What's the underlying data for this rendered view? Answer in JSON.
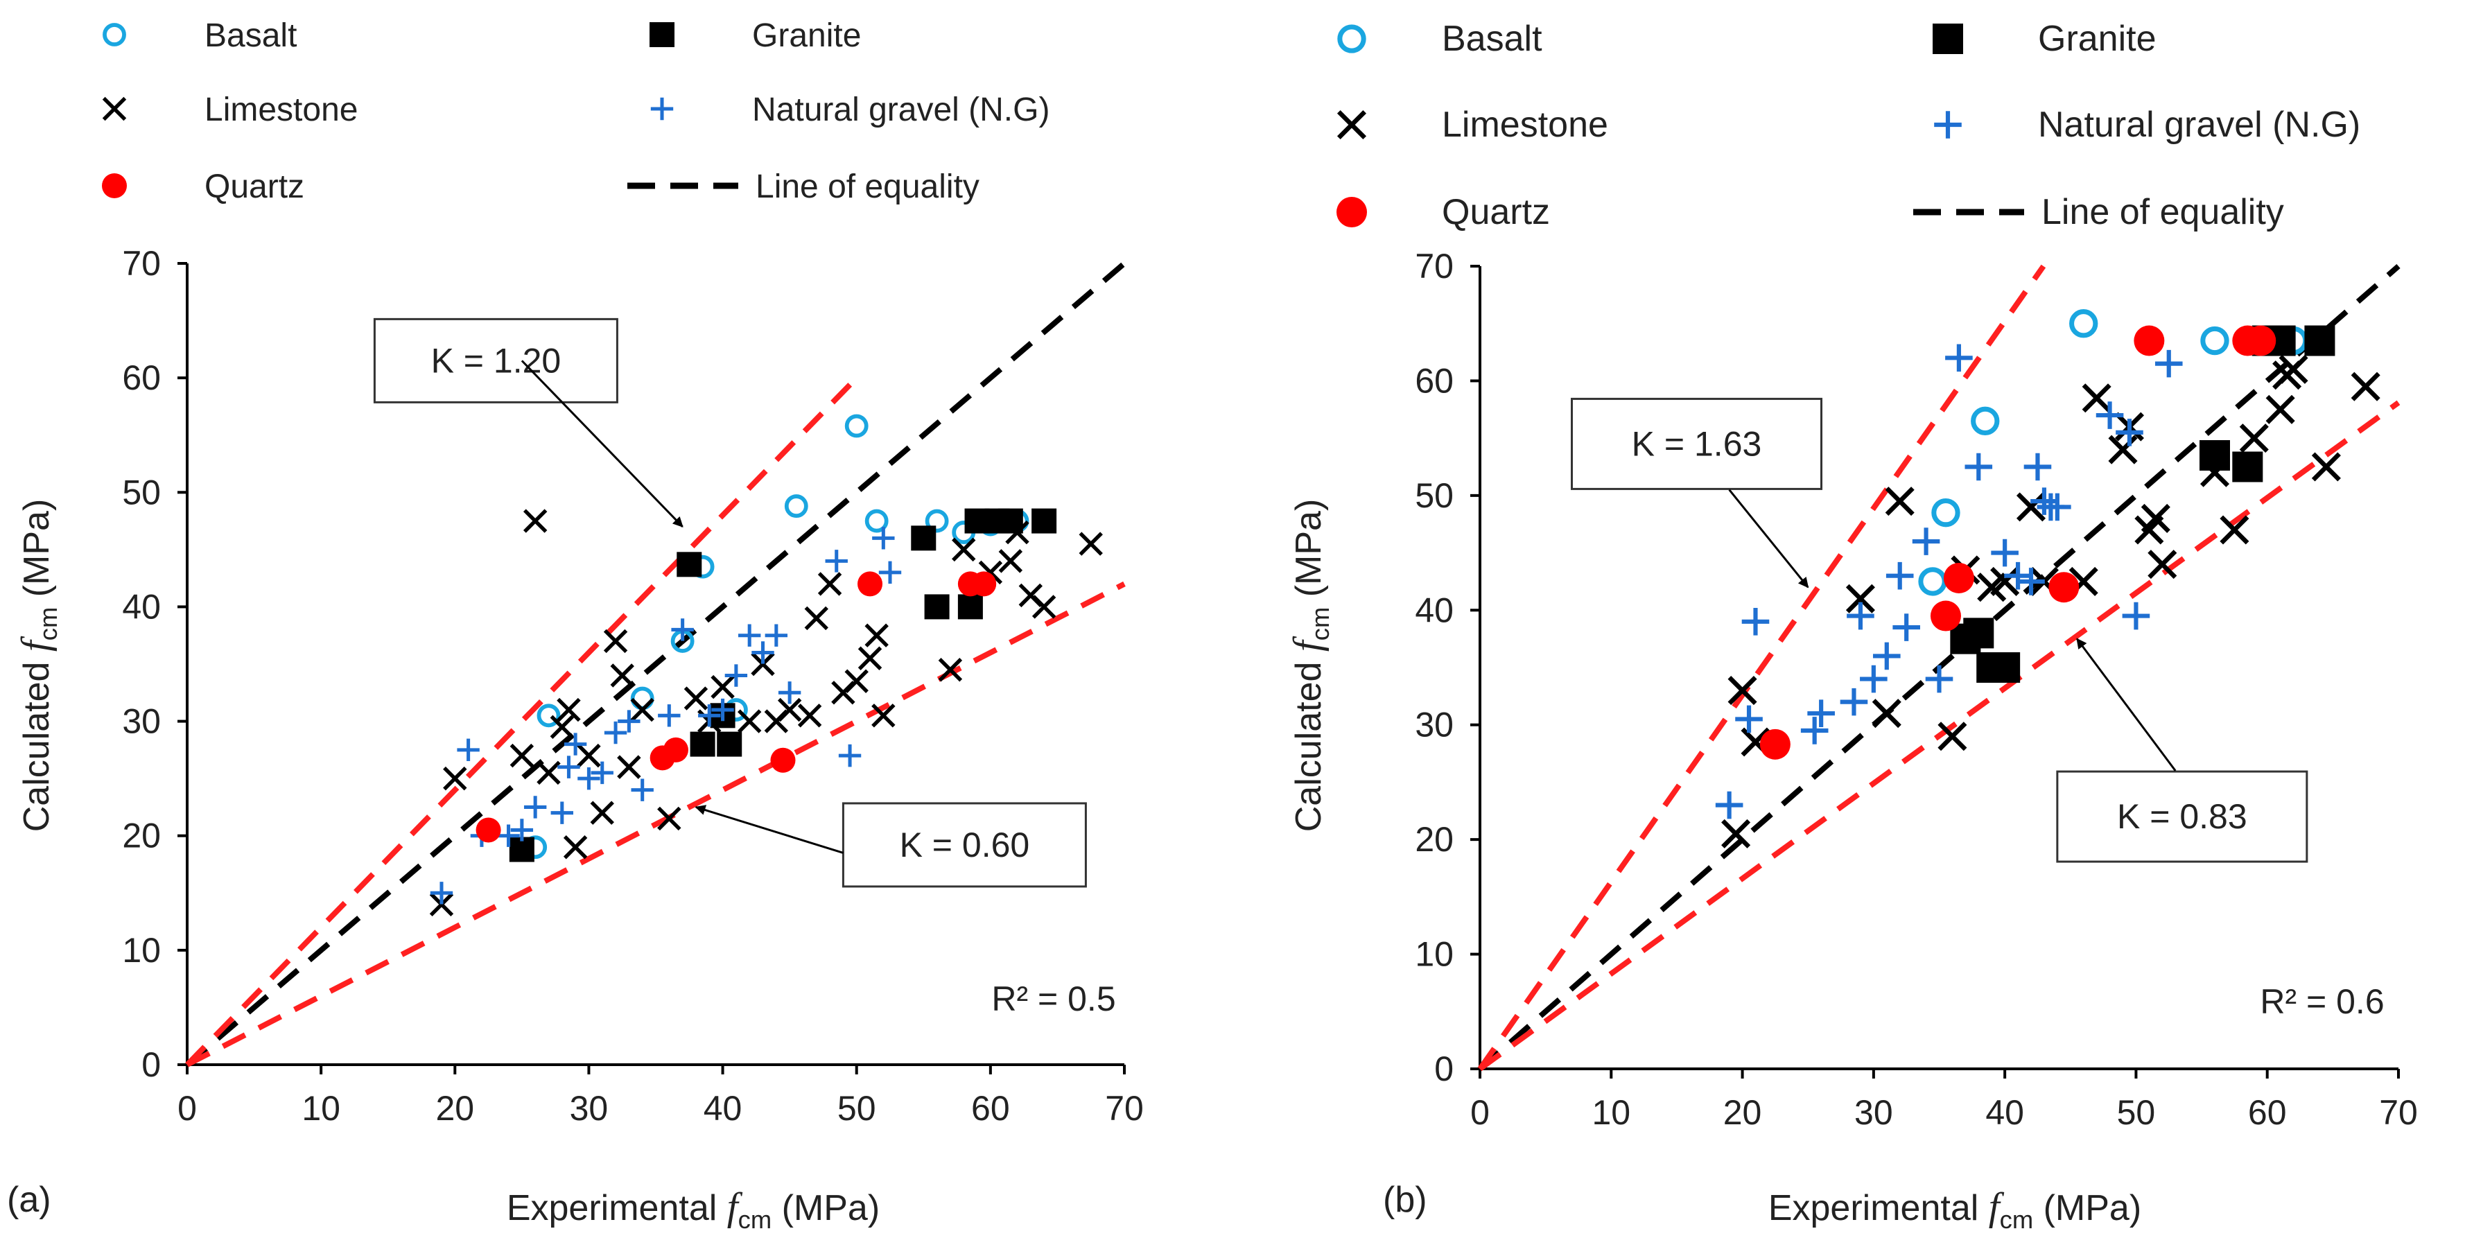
{
  "colors": {
    "basalt": "#1aa6e0",
    "granite": "#000000",
    "limestone": "#000000",
    "natural_gravel": "#1f6fd1",
    "quartz": "#ff0000",
    "equality_line": "#000000",
    "bound_line": "#ff2020",
    "axis": "#000000",
    "text": "#222222"
  },
  "legend": [
    {
      "key": "basalt",
      "label": "Basalt",
      "marker": "open-circle"
    },
    {
      "key": "granite",
      "label": "Granite",
      "marker": "filled-square"
    },
    {
      "key": "limestone",
      "label": "Limestone",
      "marker": "cross-x"
    },
    {
      "key": "natural_gravel",
      "label": "Natural gravel (N.G)",
      "marker": "plus"
    },
    {
      "key": "quartz",
      "label": "Quartz",
      "marker": "filled-circle"
    },
    {
      "key": "equality_line",
      "label": "Line of equality",
      "marker": "dashed-line"
    }
  ],
  "chart_data": [
    {
      "type": "scatter",
      "panel_label": "(a)",
      "xlabel": "Experimental fcm (MPa)",
      "xlabel_main": "Experimental ",
      "xlabel_var": "f",
      "xlabel_sub": "cm",
      "xlabel_unit": "(MPa)",
      "ylabel": "Calculated fcm (MPa)",
      "ylabel_main": "Calculated ",
      "ylabel_var": "f",
      "ylabel_sub": "cm",
      "ylabel_unit": "(MPa)",
      "xlim": [
        0,
        70
      ],
      "ylim": [
        0,
        70
      ],
      "xticks": [
        "0",
        "10",
        "20",
        "30",
        "40",
        "50",
        "60",
        "70"
      ],
      "yticks": [
        "0",
        "10",
        "20",
        "30",
        "40",
        "50",
        "60",
        "70"
      ],
      "grid": false,
      "legend_position": "top",
      "r2_label": "R² = 0.5",
      "reference_lines": [
        {
          "label": "Line of equality",
          "slope": 1.0,
          "x_end": 70
        },
        {
          "label": "K = 1.20",
          "slope": 1.2,
          "x_end": 50
        },
        {
          "label": "K = 0.60",
          "slope": 0.6,
          "x_end": 70
        }
      ],
      "annotations": [
        {
          "text": "K = 1.20",
          "box_x": 14,
          "box_y": 61.5,
          "arrow_from": [
            25,
            61.5
          ],
          "arrow_to": [
            37,
            47
          ]
        },
        {
          "text": "K = 0.60",
          "box_x": 49,
          "box_y": 19.2,
          "arrow_from": [
            49,
            18.5
          ],
          "arrow_to": [
            38,
            22.5
          ]
        }
      ],
      "series": [
        {
          "name": "Basalt",
          "key": "basalt",
          "points": [
            [
              27,
              30.5
            ],
            [
              26,
              19
            ],
            [
              34,
              32
            ],
            [
              37,
              37
            ],
            [
              38.5,
              43.5
            ],
            [
              41,
              31
            ],
            [
              45.5,
              48.8
            ],
            [
              50,
              55.8
            ],
            [
              51.5,
              47.5
            ],
            [
              56,
              47.5
            ],
            [
              58,
              46.5
            ],
            [
              60,
              47.2
            ],
            [
              62,
              47.5
            ]
          ]
        },
        {
          "name": "Granite",
          "key": "granite",
          "points": [
            [
              25,
              18.8
            ],
            [
              37.5,
              43.7
            ],
            [
              38.5,
              28
            ],
            [
              40,
              30.5
            ],
            [
              40.5,
              28
            ],
            [
              55,
              46
            ],
            [
              56,
              40
            ],
            [
              58.5,
              40
            ],
            [
              59,
              47.5
            ],
            [
              60.5,
              47.5
            ],
            [
              61.5,
              47.5
            ],
            [
              64,
              47.5
            ]
          ]
        },
        {
          "name": "Limestone",
          "key": "limestone",
          "points": [
            [
              19,
              14
            ],
            [
              20,
              25
            ],
            [
              25,
              27
            ],
            [
              26,
              47.5
            ],
            [
              27,
              25.5
            ],
            [
              28,
              29.5
            ],
            [
              28.5,
              31
            ],
            [
              29,
              19
            ],
            [
              30,
              27
            ],
            [
              31,
              22
            ],
            [
              32,
              37
            ],
            [
              32.5,
              34
            ],
            [
              33,
              26
            ],
            [
              34,
              31
            ],
            [
              36,
              21.5
            ],
            [
              38,
              32
            ],
            [
              39,
              30
            ],
            [
              40,
              33
            ],
            [
              42,
              30
            ],
            [
              43,
              35
            ],
            [
              44,
              30
            ],
            [
              45,
              31
            ],
            [
              46.5,
              30.5
            ],
            [
              47,
              39
            ],
            [
              48,
              42
            ],
            [
              49,
              32.5
            ],
            [
              50,
              33.5
            ],
            [
              51,
              35.5
            ],
            [
              51.5,
              37.5
            ],
            [
              52,
              30.5
            ],
            [
              57,
              34.5
            ],
            [
              58,
              45
            ],
            [
              60,
              43
            ],
            [
              61.5,
              44
            ],
            [
              62,
              46.5
            ],
            [
              63,
              41
            ],
            [
              64,
              40
            ],
            [
              67.5,
              45.5
            ]
          ]
        },
        {
          "name": "Natural gravel (N.G)",
          "key": "natural_gravel",
          "points": [
            [
              19,
              15
            ],
            [
              21,
              27.5
            ],
            [
              22,
              20
            ],
            [
              24,
              20
            ],
            [
              25,
              20.5
            ],
            [
              26,
              22.5
            ],
            [
              28,
              22
            ],
            [
              28.5,
              26
            ],
            [
              29,
              28
            ],
            [
              30,
              25
            ],
            [
              31,
              25.5
            ],
            [
              32,
              29
            ],
            [
              33,
              30
            ],
            [
              34,
              24
            ],
            [
              36,
              30.5
            ],
            [
              37,
              38
            ],
            [
              39,
              30.5
            ],
            [
              40,
              31
            ],
            [
              41,
              34
            ],
            [
              42,
              37.5
            ],
            [
              43,
              36
            ],
            [
              44,
              37.5
            ],
            [
              45,
              32.5
            ],
            [
              48.5,
              44
            ],
            [
              49.5,
              27
            ],
            [
              52,
              46
            ],
            [
              52.5,
              43
            ]
          ]
        },
        {
          "name": "Quartz",
          "key": "quartz",
          "points": [
            [
              22.5,
              20.5
            ],
            [
              35.5,
              26.8
            ],
            [
              36.5,
              27.5
            ],
            [
              44.5,
              26.6
            ],
            [
              51,
              42
            ],
            [
              58.5,
              42
            ],
            [
              59.5,
              42
            ]
          ]
        }
      ]
    },
    {
      "type": "scatter",
      "panel_label": "(b)",
      "xlabel": "Experimental fcm (MPa)",
      "xlabel_main": "Experimental ",
      "xlabel_var": "f",
      "xlabel_sub": "cm",
      "xlabel_unit": "(MPa)",
      "ylabel": "Calculated fcm (MPa)",
      "ylabel_main": "Calculated ",
      "ylabel_var": "f",
      "ylabel_sub": "cm",
      "ylabel_unit": "(MPa)",
      "xlim": [
        0,
        70
      ],
      "ylim": [
        0,
        70
      ],
      "xticks": [
        "0",
        "10",
        "20",
        "30",
        "40",
        "50",
        "60",
        "70"
      ],
      "yticks": [
        "0",
        "10",
        "20",
        "30",
        "40",
        "50",
        "60",
        "70"
      ],
      "grid": false,
      "legend_position": "top",
      "r2_label": "R² = 0.6",
      "reference_lines": [
        {
          "label": "Line of equality",
          "slope": 1.0,
          "x_end": 70
        },
        {
          "label": "K = 1.63",
          "slope": 1.63,
          "x_end": 43
        },
        {
          "label": "K = 0.83",
          "slope": 0.83,
          "x_end": 70
        }
      ],
      "annotations": [
        {
          "text": "K = 1.63",
          "box_x": 7,
          "box_y": 54.5,
          "arrow_from": [
            19,
            50.5
          ],
          "arrow_to": [
            25,
            42
          ]
        },
        {
          "text": "K = 0.83",
          "box_x": 44,
          "box_y": 22,
          "arrow_from": [
            53,
            26
          ],
          "arrow_to": [
            45.5,
            37.5
          ]
        }
      ],
      "series": [
        {
          "name": "Basalt",
          "key": "basalt",
          "points": [
            [
              34.5,
              42.5
            ],
            [
              35.5,
              48.5
            ],
            [
              38.5,
              56.5
            ],
            [
              46,
              65
            ],
            [
              56,
              63.5
            ],
            [
              60,
              63.5
            ],
            [
              62,
              63.5
            ]
          ]
        },
        {
          "name": "Granite",
          "key": "granite",
          "points": [
            [
              37,
              37.5
            ],
            [
              38,
              38
            ],
            [
              39,
              35
            ],
            [
              40,
              35
            ],
            [
              56,
              53.5
            ],
            [
              58.5,
              52.5
            ],
            [
              60,
              63.5
            ],
            [
              61,
              63.5
            ],
            [
              64,
              63.5
            ]
          ]
        },
        {
          "name": "Limestone",
          "key": "limestone",
          "points": [
            [
              19.5,
              20.5
            ],
            [
              20,
              33
            ],
            [
              21,
              28.5
            ],
            [
              29,
              41
            ],
            [
              31,
              31
            ],
            [
              32,
              49.5
            ],
            [
              36,
              29
            ],
            [
              37,
              43.5
            ],
            [
              39,
              42
            ],
            [
              40,
              42.5
            ],
            [
              42,
              49
            ],
            [
              43,
              42.5
            ],
            [
              46,
              42.5
            ],
            [
              47,
              58.5
            ],
            [
              49,
              54
            ],
            [
              49.5,
              56
            ],
            [
              51,
              47
            ],
            [
              51.5,
              48
            ],
            [
              52,
              44
            ],
            [
              56,
              52
            ],
            [
              57.5,
              47
            ],
            [
              59,
              55
            ],
            [
              61,
              57.5
            ],
            [
              61.5,
              60.5
            ],
            [
              62,
              61
            ],
            [
              64.5,
              52.5
            ],
            [
              67.5,
              59.5
            ]
          ]
        },
        {
          "name": "Natural gravel (N.G)",
          "key": "natural_gravel",
          "points": [
            [
              19,
              23
            ],
            [
              20.5,
              30.5
            ],
            [
              21,
              39
            ],
            [
              25.5,
              29.5
            ],
            [
              26,
              31
            ],
            [
              28.5,
              32
            ],
            [
              29,
              39.5
            ],
            [
              30,
              34
            ],
            [
              31,
              36
            ],
            [
              32,
              43
            ],
            [
              32.5,
              38.5
            ],
            [
              34,
              46
            ],
            [
              35,
              34
            ],
            [
              36.5,
              62
            ],
            [
              38,
              52.5
            ],
            [
              40,
              45
            ],
            [
              41,
              43
            ],
            [
              42,
              42.5
            ],
            [
              42.5,
              52.5
            ],
            [
              43,
              49.5
            ],
            [
              43.5,
              49
            ],
            [
              44,
              49
            ],
            [
              48,
              57
            ],
            [
              49.5,
              55.5
            ],
            [
              50,
              39.5
            ],
            [
              52.5,
              61.5
            ]
          ]
        },
        {
          "name": "Quartz",
          "key": "quartz",
          "points": [
            [
              22.5,
              28.3
            ],
            [
              35.5,
              39.5
            ],
            [
              36.5,
              42.8
            ],
            [
              44.5,
              42
            ],
            [
              51,
              63.5
            ],
            [
              58.5,
              63.5
            ],
            [
              59.5,
              63.5
            ]
          ]
        }
      ]
    }
  ]
}
